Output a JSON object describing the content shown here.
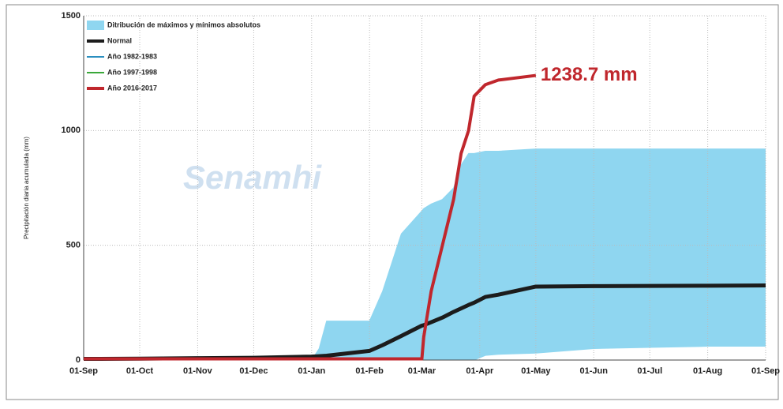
{
  "chart_data": {
    "type": "line",
    "y_label": "Precipitación diaria acumulada (mm)",
    "watermark": "Senamhi",
    "annotation": "1238.7 mm",
    "x": [
      0,
      30,
      61,
      91,
      122,
      126,
      130,
      153,
      160,
      170,
      181,
      182,
      186,
      192,
      198,
      202,
      206,
      209,
      215,
      222,
      242,
      273,
      303,
      334,
      365
    ],
    "xlim": [
      0,
      365
    ],
    "xticks": [
      {
        "value": 0,
        "label": "01-Sep"
      },
      {
        "value": 30,
        "label": "01-Oct"
      },
      {
        "value": 61,
        "label": "01-Nov"
      },
      {
        "value": 91,
        "label": "01-Dec"
      },
      {
        "value": 122,
        "label": "01-Jan"
      },
      {
        "value": 153,
        "label": "01-Feb"
      },
      {
        "value": 181,
        "label": "01-Mar"
      },
      {
        "value": 212,
        "label": "01-Apr"
      },
      {
        "value": 242,
        "label": "01-May"
      },
      {
        "value": 273,
        "label": "01-Jun"
      },
      {
        "value": 303,
        "label": "01-Jul"
      },
      {
        "value": 334,
        "label": "01-Aug"
      },
      {
        "value": 365,
        "label": "01-Sep"
      }
    ],
    "ylim": [
      0,
      1500
    ],
    "yticks": [
      0,
      500,
      1000,
      1500
    ],
    "grid": true,
    "band": {
      "name": "Ditribución de máximos y mínimos absolutos",
      "color": "#8fd6f0",
      "upper": [
        0,
        0,
        0,
        0,
        0,
        50,
        170,
        170,
        300,
        550,
        650,
        660,
        680,
        700,
        750,
        850,
        900,
        900,
        910,
        910,
        920,
        920,
        920,
        920,
        920
      ],
      "lower": [
        0,
        0,
        0,
        0,
        0,
        0,
        0,
        0,
        0,
        0,
        0,
        0,
        0,
        0,
        0,
        0,
        0,
        0,
        20,
        25,
        30,
        50,
        55,
        60,
        60
      ]
    },
    "series": [
      {
        "name": "Normal",
        "color": "#1c1c1c",
        "width": 5,
        "values": [
          5,
          6,
          8,
          10,
          15,
          17,
          19,
          40,
          65,
          105,
          150,
          152,
          165,
          185,
          210,
          225,
          240,
          250,
          275,
          285,
          320,
          322,
          323,
          324,
          325
        ]
      },
      {
        "name": "Año 1982-1983",
        "color": "#2a8fc0",
        "width": 2,
        "values": [
          null,
          null,
          null,
          null,
          null,
          null,
          null,
          null,
          null,
          null,
          null,
          null,
          null,
          null,
          null,
          null,
          null,
          null,
          null,
          null,
          null,
          null,
          null,
          null,
          null
        ]
      },
      {
        "name": "Año 1997-1998",
        "color": "#3aa83a",
        "width": 2,
        "values": [
          null,
          null,
          null,
          null,
          null,
          null,
          null,
          null,
          null,
          null,
          null,
          null,
          null,
          null,
          null,
          null,
          null,
          null,
          null,
          null,
          null,
          null,
          null,
          null,
          null
        ]
      },
      {
        "name": "Año 2016-2017",
        "color": "#c0272d",
        "width": 4,
        "values": [
          5,
          5,
          5,
          5,
          5,
          5,
          5,
          5,
          5,
          5,
          5,
          100,
          300,
          500,
          700,
          900,
          1000,
          1150,
          1200,
          1220,
          1240,
          null,
          null,
          null,
          null
        ]
      }
    ]
  }
}
